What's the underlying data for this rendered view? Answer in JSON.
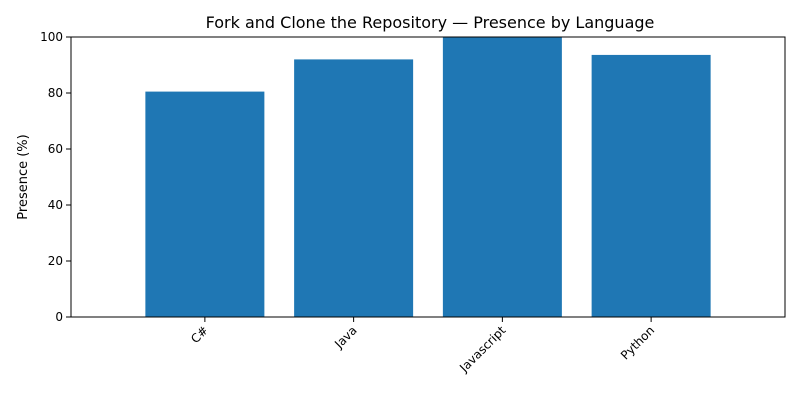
{
  "chart_data": {
    "type": "bar",
    "title": "Fork and Clone the Repository — Presence by Language",
    "xlabel": "",
    "ylabel": "Presence (%)",
    "categories": [
      "C#",
      "Java",
      "Javascript",
      "Python"
    ],
    "values": [
      80.5,
      92.0,
      100.0,
      93.6
    ],
    "ylim": [
      0,
      100
    ],
    "yticks": [
      0,
      20,
      40,
      60,
      80,
      100
    ],
    "bar_color": "#1f77b4",
    "grid": false,
    "legend": "none"
  }
}
